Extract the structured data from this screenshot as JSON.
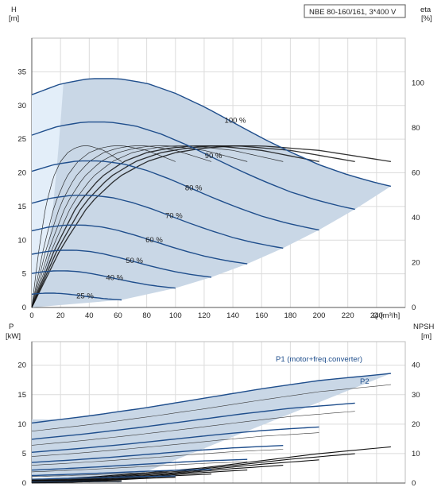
{
  "title": "NBE 80-160/161, 3*400 V",
  "top_axes": {
    "y_left_label": "H",
    "y_left_unit": "[m]",
    "y_right_label": "eta",
    "y_right_unit": "[%]",
    "x_label": "Q [m³/h]"
  },
  "bottom_axes": {
    "y_left_label": "P",
    "y_left_unit": "[kW]",
    "y_right_label": "NPSH",
    "y_right_unit": "[m]"
  },
  "series_labels": {
    "p1": "P1 (motor+freq.converter)",
    "p2": "P2"
  },
  "colors": {
    "speed_curve": "#1f4e8c",
    "operating_area": "#c9d7e6",
    "low_flow_area": "#e3eef9",
    "eta_curve": "#111111",
    "grid": "#dcdcdc"
  },
  "chart_data": [
    {
      "type": "line",
      "name": "head",
      "x_axis": {
        "label": "Q [m³/h]",
        "range": [
          0,
          260
        ],
        "ticks": [
          0,
          20,
          40,
          60,
          80,
          100,
          120,
          140,
          160,
          180,
          200,
          220,
          240
        ]
      },
      "y_left": {
        "label": "H [m]",
        "range": [
          0,
          40
        ],
        "ticks": [
          0,
          5,
          10,
          15,
          20,
          25,
          30,
          35
        ]
      },
      "y_right": {
        "label": "eta [%]",
        "range": [
          0,
          120
        ],
        "ticks": [
          0,
          20,
          40,
          60,
          80,
          100
        ]
      },
      "speed_curves": [
        {
          "label": "100 %",
          "speed": 1.0,
          "x": [
            0,
            20,
            40,
            60,
            80,
            100,
            120,
            140,
            160,
            180,
            200,
            220,
            240,
            250
          ],
          "y": [
            31.6,
            33.2,
            34.0,
            34.0,
            33.3,
            31.8,
            29.8,
            27.5,
            25.2,
            23.1,
            21.2,
            19.7,
            18.5,
            18.0
          ]
        },
        {
          "label": "90 %",
          "speed": 0.9,
          "y_at_zero": 25.6
        },
        {
          "label": "80 %",
          "speed": 0.8,
          "y_at_zero": 20.2
        },
        {
          "label": "70 %",
          "speed": 0.7,
          "y_at_zero": 15.5
        },
        {
          "label": "60 %",
          "speed": 0.6,
          "y_at_zero": 11.4
        },
        {
          "label": "50 %",
          "speed": 0.5,
          "y_at_zero": 7.9
        },
        {
          "label": "40 %",
          "speed": 0.4,
          "y_at_zero": 5.1
        },
        {
          "label": "25 %",
          "speed": 0.25,
          "y_at_zero": 2.0
        }
      ],
      "efficiency_curve": {
        "label": "eta",
        "x": [
          0,
          20,
          40,
          60,
          80,
          100,
          120,
          140,
          160,
          180,
          200,
          220,
          240,
          250
        ],
        "y_pct": [
          0,
          26,
          46,
          58,
          65,
          69,
          71,
          72,
          72,
          71,
          70,
          68,
          66,
          65
        ]
      },
      "grid": true
    },
    {
      "type": "line",
      "name": "power_npsh",
      "x_axis": {
        "label": "Q [m³/h]",
        "range": [
          0,
          260
        ]
      },
      "y_left": {
        "label": "P [kW]",
        "range": [
          0,
          24
        ],
        "ticks": [
          0,
          5,
          10,
          15,
          20
        ]
      },
      "y_right": {
        "label": "NPSH [m]",
        "range": [
          0,
          48
        ],
        "ticks": [
          0,
          10,
          20,
          30,
          40
        ]
      },
      "series": [
        {
          "name": "P1 (motor+freq.converter)",
          "x": [
            0,
            40,
            80,
            120,
            160,
            200,
            250
          ],
          "y": [
            10.2,
            11.4,
            12.8,
            14.4,
            16.0,
            17.4,
            18.6
          ]
        },
        {
          "name": "P2",
          "x": [
            0,
            40,
            80,
            120,
            160,
            200,
            250
          ],
          "y": [
            8.8,
            9.9,
            11.2,
            12.6,
            14.1,
            15.5,
            16.7
          ]
        },
        {
          "name": "NPSH",
          "x": [
            0,
            40,
            80,
            120,
            160,
            200,
            250
          ],
          "y_m": [
            1.0,
            2.0,
            3.5,
            5.2,
            7.6,
            10.0,
            12.3
          ]
        }
      ],
      "grid": true
    }
  ]
}
